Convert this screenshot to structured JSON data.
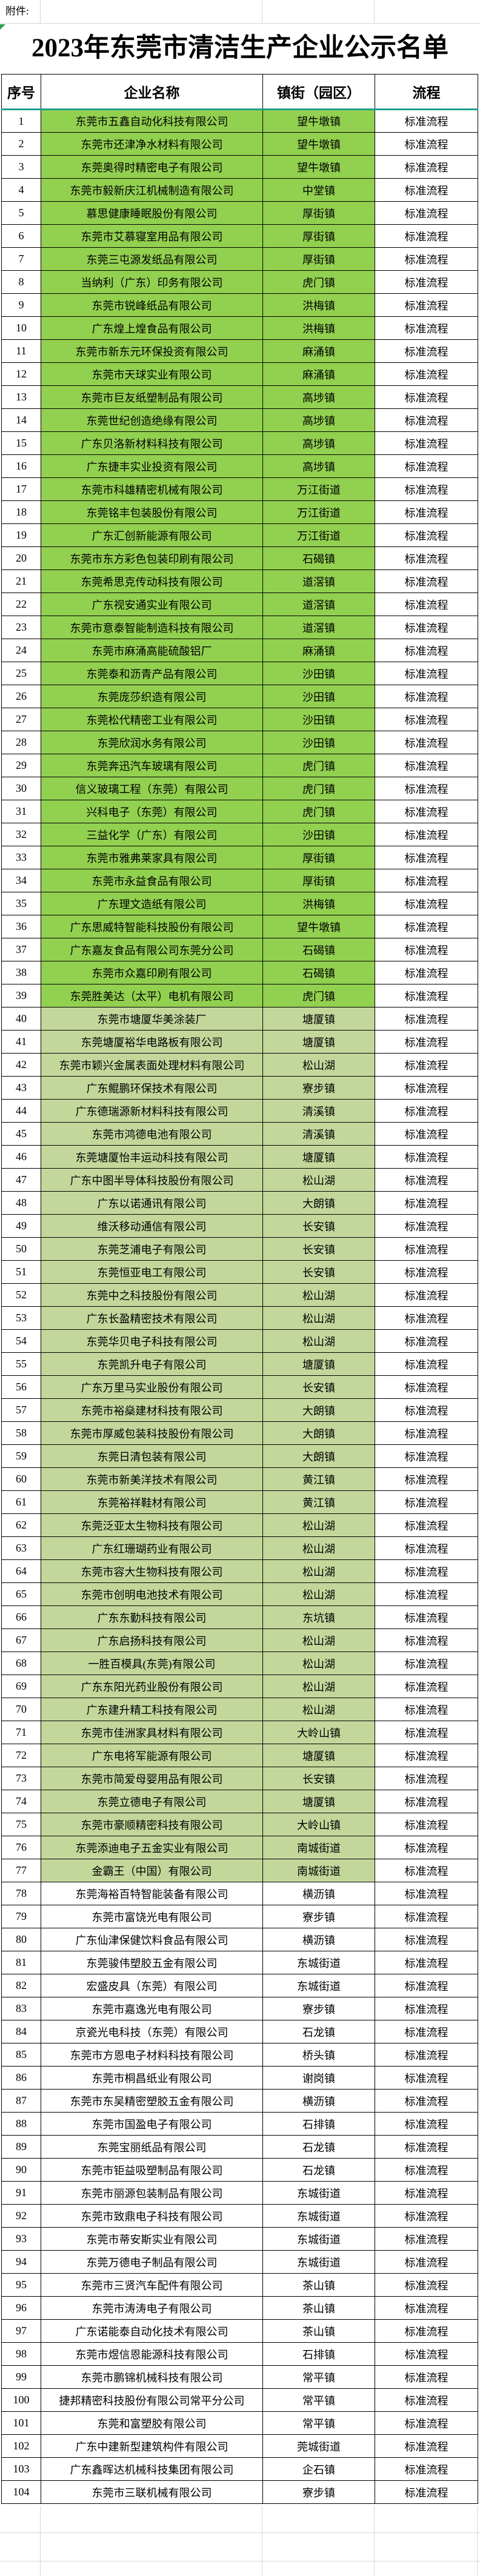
{
  "page": {
    "attachment_label": "附件:",
    "title": "2023年东莞市清洁生产企业公示名单"
  },
  "colors": {
    "dark_green": "#92D050",
    "light_green": "#C4D79B",
    "teal_line": "#1FA08C",
    "table_border": "#000000",
    "grid_faint": "#D6D6D6"
  },
  "fill_groups": [
    {
      "from": 1,
      "to": 39,
      "style": "fill-dark"
    },
    {
      "from": 40,
      "to": 77,
      "style": "fill-light"
    },
    {
      "from": 78,
      "to": 104,
      "style": "none"
    }
  ],
  "table": {
    "headers": [
      "序号",
      "企业名称",
      "镇街（园区）",
      "流程"
    ],
    "rows": [
      {
        "n": 1,
        "name": "东莞市五鑫自动化科技有限公司",
        "town": "望牛墩镇",
        "flow": "标准流程"
      },
      {
        "n": 2,
        "name": "东莞市还津净水材料有限公司",
        "town": "望牛墩镇",
        "flow": "标准流程"
      },
      {
        "n": 3,
        "name": "东莞奥得时精密电子有限公司",
        "town": "望牛墩镇",
        "flow": "标准流程"
      },
      {
        "n": 4,
        "name": "东莞市毅新庆江机械制造有限公司",
        "town": "中堂镇",
        "flow": "标准流程"
      },
      {
        "n": 5,
        "name": "慕思健康睡眠股份有限公司",
        "town": "厚街镇",
        "flow": "标准流程"
      },
      {
        "n": 6,
        "name": "东莞市艾慕寝室用品有限公司",
        "town": "厚街镇",
        "flow": "标准流程"
      },
      {
        "n": 7,
        "name": "东莞三屯源发纸品有限公司",
        "town": "厚街镇",
        "flow": "标准流程"
      },
      {
        "n": 8,
        "name": "当纳利（广东）印务有限公司",
        "town": "虎门镇",
        "flow": "标准流程"
      },
      {
        "n": 9,
        "name": "东莞市锐峰纸品有限公司",
        "town": "洪梅镇",
        "flow": "标准流程"
      },
      {
        "n": 10,
        "name": "广东煌上煌食品有限公司",
        "town": "洪梅镇",
        "flow": "标准流程"
      },
      {
        "n": 11,
        "name": "东莞市新东元环保投资有限公司",
        "town": "麻涌镇",
        "flow": "标准流程"
      },
      {
        "n": 12,
        "name": "东莞市天球实业有限公司",
        "town": "麻涌镇",
        "flow": "标准流程"
      },
      {
        "n": 13,
        "name": "东莞市巨友纸塑制品有限公司",
        "town": "高埗镇",
        "flow": "标准流程"
      },
      {
        "n": 14,
        "name": "东莞世纪创造绝缘有限公司",
        "town": "高埗镇",
        "flow": "标准流程"
      },
      {
        "n": 15,
        "name": "广东贝洛新材料科技有限公司",
        "town": "高埗镇",
        "flow": "标准流程"
      },
      {
        "n": 16,
        "name": "广东捷丰实业投资有限公司",
        "town": "高埗镇",
        "flow": "标准流程"
      },
      {
        "n": 17,
        "name": "东莞市科雄精密机械有限公司",
        "town": "万江街道",
        "flow": "标准流程"
      },
      {
        "n": 18,
        "name": "东莞铭丰包装股份有限公司",
        "town": "万江街道",
        "flow": "标准流程"
      },
      {
        "n": 19,
        "name": "广东汇创新能源有限公司",
        "town": "万江街道",
        "flow": "标准流程"
      },
      {
        "n": 20,
        "name": "东莞市东方彩色包装印刷有限公司",
        "town": "石碣镇",
        "flow": "标准流程"
      },
      {
        "n": 21,
        "name": "东莞希思克传动科技有限公司",
        "town": "道滘镇",
        "flow": "标准流程"
      },
      {
        "n": 22,
        "name": "广东视安通实业有限公司",
        "town": "道滘镇",
        "flow": "标准流程"
      },
      {
        "n": 23,
        "name": "东莞市意泰智能制造科技有限公司",
        "town": "道滘镇",
        "flow": "标准流程"
      },
      {
        "n": 24,
        "name": "东莞市麻涌高能硫酸铝厂",
        "town": "麻涌镇",
        "flow": "标准流程"
      },
      {
        "n": 25,
        "name": "东莞泰和沥青产品有限公司",
        "town": "沙田镇",
        "flow": "标准流程"
      },
      {
        "n": 26,
        "name": "东莞庞莎织造有限公司",
        "town": "沙田镇",
        "flow": "标准流程"
      },
      {
        "n": 27,
        "name": "东莞松代精密工业有限公司",
        "town": "沙田镇",
        "flow": "标准流程"
      },
      {
        "n": 28,
        "name": "东莞欣润水务有限公司",
        "town": "沙田镇",
        "flow": "标准流程"
      },
      {
        "n": 29,
        "name": "东莞奔迅汽车玻璃有限公司",
        "town": "虎门镇",
        "flow": "标准流程"
      },
      {
        "n": 30,
        "name": "信义玻璃工程（东莞）有限公司",
        "town": "虎门镇",
        "flow": "标准流程"
      },
      {
        "n": 31,
        "name": "兴科电子（东莞）有限公司",
        "town": "虎门镇",
        "flow": "标准流程"
      },
      {
        "n": 32,
        "name": "三益化学（广东）有限公司",
        "town": "沙田镇",
        "flow": "标准流程"
      },
      {
        "n": 33,
        "name": "东莞市雅弗莱家具有限公司",
        "town": "厚街镇",
        "flow": "标准流程"
      },
      {
        "n": 34,
        "name": "东莞市永益食品有限公司",
        "town": "厚街镇",
        "flow": "标准流程"
      },
      {
        "n": 35,
        "name": "广东理文造纸有限公司",
        "town": "洪梅镇",
        "flow": "标准流程"
      },
      {
        "n": 36,
        "name": "广东思威特智能科技股份有限公司",
        "town": "望牛墩镇",
        "flow": "标准流程"
      },
      {
        "n": 37,
        "name": "广东嘉友食品有限公司东莞分公司",
        "town": "石碣镇",
        "flow": "标准流程"
      },
      {
        "n": 38,
        "name": "东莞市众嘉印刷有限公司",
        "town": "石碣镇",
        "flow": "标准流程"
      },
      {
        "n": 39,
        "name": "东莞胜美达（太平）电机有限公司",
        "town": "虎门镇",
        "flow": "标准流程"
      },
      {
        "n": 40,
        "name": "东莞市塘厦华美涂装厂",
        "town": "塘厦镇",
        "flow": "标准流程"
      },
      {
        "n": 41,
        "name": "东莞塘厦裕华电路板有限公司",
        "town": "塘厦镇",
        "flow": "标准流程"
      },
      {
        "n": 42,
        "name": "东莞市颖兴金属表面处理材料有限公司",
        "town": "松山湖",
        "flow": "标准流程"
      },
      {
        "n": 43,
        "name": "广东鲲鹏环保技术有限公司",
        "town": "寮步镇",
        "flow": "标准流程"
      },
      {
        "n": 44,
        "name": "广东德瑞源新材料科技有限公司",
        "town": "清溪镇",
        "flow": "标准流程"
      },
      {
        "n": 45,
        "name": "东莞市鸿德电池有限公司",
        "town": "清溪镇",
        "flow": "标准流程"
      },
      {
        "n": 46,
        "name": "东莞塘厦怡丰运动科技有限公司",
        "town": "塘厦镇",
        "flow": "标准流程"
      },
      {
        "n": 47,
        "name": "广东中图半导体科技股份有限公司",
        "town": "松山湖",
        "flow": "标准流程"
      },
      {
        "n": 48,
        "name": "广东以诺通讯有限公司",
        "town": "大朗镇",
        "flow": "标准流程"
      },
      {
        "n": 49,
        "name": "维沃移动通信有限公司",
        "town": "长安镇",
        "flow": "标准流程"
      },
      {
        "n": 50,
        "name": "东莞芝浦电子有限公司",
        "town": "长安镇",
        "flow": "标准流程"
      },
      {
        "n": 51,
        "name": "东莞恒亚电工有限公司",
        "town": "长安镇",
        "flow": "标准流程"
      },
      {
        "n": 52,
        "name": "东莞中之科技股份有限公司",
        "town": "松山湖",
        "flow": "标准流程"
      },
      {
        "n": 53,
        "name": "广东长盈精密技术有限公司",
        "town": "松山湖",
        "flow": "标准流程"
      },
      {
        "n": 54,
        "name": "东莞华贝电子科技有限公司",
        "town": "松山湖",
        "flow": "标准流程"
      },
      {
        "n": 55,
        "name": "东莞凯升电子有限公司",
        "town": "塘厦镇",
        "flow": "标准流程"
      },
      {
        "n": 56,
        "name": "广东万里马实业股份有限公司",
        "town": "长安镇",
        "flow": "标准流程"
      },
      {
        "n": 57,
        "name": "东莞市裕燊建材科技有限公司",
        "town": "大朗镇",
        "flow": "标准流程"
      },
      {
        "n": 58,
        "name": "东莞市厚威包装科技股份有限公司",
        "town": "大朗镇",
        "flow": "标准流程"
      },
      {
        "n": 59,
        "name": "东莞日清包装有限公司",
        "town": "大朗镇",
        "flow": "标准流程"
      },
      {
        "n": 60,
        "name": "东莞市新美洋技术有限公司",
        "town": "黄江镇",
        "flow": "标准流程"
      },
      {
        "n": 61,
        "name": "东莞裕祥鞋材有限公司",
        "town": "黄江镇",
        "flow": "标准流程"
      },
      {
        "n": 62,
        "name": "东莞泛亚太生物科技有限公司",
        "town": "松山湖",
        "flow": "标准流程"
      },
      {
        "n": 63,
        "name": "广东红珊瑚药业有限公司",
        "town": "松山湖",
        "flow": "标准流程"
      },
      {
        "n": 64,
        "name": "东莞市容大生物科技有限公司",
        "town": "松山湖",
        "flow": "标准流程"
      },
      {
        "n": 65,
        "name": "东莞市创明电池技术有限公司",
        "town": "松山湖",
        "flow": "标准流程"
      },
      {
        "n": 66,
        "name": "广东东勤科技有限公司",
        "town": "东坑镇",
        "flow": "标准流程"
      },
      {
        "n": 67,
        "name": "广东启扬科技有限公司",
        "town": "松山湖",
        "flow": "标准流程"
      },
      {
        "n": 68,
        "name": "一胜百模具(东莞)有限公司",
        "town": "松山湖",
        "flow": "标准流程"
      },
      {
        "n": 69,
        "name": "广东东阳光药业股份有限公司",
        "town": "松山湖",
        "flow": "标准流程"
      },
      {
        "n": 70,
        "name": "广东建升精工科技有限公司",
        "town": "松山湖",
        "flow": "标准流程"
      },
      {
        "n": 71,
        "name": "东莞市佳洲家具材料有限公司",
        "town": "大岭山镇",
        "flow": "标准流程"
      },
      {
        "n": 72,
        "name": "广东电将军能源有限公司",
        "town": "塘厦镇",
        "flow": "标准流程"
      },
      {
        "n": 73,
        "name": "东莞市简爱母婴用品有限公司",
        "town": "长安镇",
        "flow": "标准流程"
      },
      {
        "n": 74,
        "name": "东莞立德电子有限公司",
        "town": "塘厦镇",
        "flow": "标准流程"
      },
      {
        "n": 75,
        "name": "东莞市豪顺精密科技有限公司",
        "town": "大岭山镇",
        "flow": "标准流程"
      },
      {
        "n": 76,
        "name": "东莞添迪电子五金实业有限公司",
        "town": "南城街道",
        "flow": "标准流程"
      },
      {
        "n": 77,
        "name": "金霸王（中国）有限公司",
        "town": "南城街道",
        "flow": "标准流程"
      },
      {
        "n": 78,
        "name": "东莞海裕百特智能装备有限公司",
        "town": "横沥镇",
        "flow": "标准流程"
      },
      {
        "n": 79,
        "name": "东莞市富饶光电有限公司",
        "town": "寮步镇",
        "flow": "标准流程"
      },
      {
        "n": 80,
        "name": "广东仙津保健饮料食品有限公司",
        "town": "横沥镇",
        "flow": "标准流程"
      },
      {
        "n": 81,
        "name": "东莞骏伟塑胶五金有限公司",
        "town": "东城街道",
        "flow": "标准流程"
      },
      {
        "n": 82,
        "name": "宏盛皮具（东莞）有限公司",
        "town": "东城街道",
        "flow": "标准流程"
      },
      {
        "n": 83,
        "name": "东莞市嘉逸光电有限公司",
        "town": "寮步镇",
        "flow": "标准流程"
      },
      {
        "n": 84,
        "name": "京瓷光电科技（东莞）有限公司",
        "town": "石龙镇",
        "flow": "标准流程"
      },
      {
        "n": 85,
        "name": "东莞市方恩电子材料科技有限公司",
        "town": "桥头镇",
        "flow": "标准流程"
      },
      {
        "n": 86,
        "name": "东莞市桐昌纸业有限公司",
        "town": "谢岗镇",
        "flow": "标准流程"
      },
      {
        "n": 87,
        "name": "东莞市东吴精密塑胶五金有限公司",
        "town": "横沥镇",
        "flow": "标准流程"
      },
      {
        "n": 88,
        "name": "东莞市国盈电子有限公司",
        "town": "石排镇",
        "flow": "标准流程"
      },
      {
        "n": 89,
        "name": "东莞宝丽纸品有限公司",
        "town": "石龙镇",
        "flow": "标准流程"
      },
      {
        "n": 90,
        "name": "东莞市钜益吸塑制品有限公司",
        "town": "石龙镇",
        "flow": "标准流程"
      },
      {
        "n": 91,
        "name": "东莞市丽源包装制品有限公司",
        "town": "东城街道",
        "flow": "标准流程"
      },
      {
        "n": 92,
        "name": "东莞市致鼎电子科技有限公司",
        "town": "东城街道",
        "flow": "标准流程"
      },
      {
        "n": 93,
        "name": "东莞市蒂安斯实业有限公司",
        "town": "东城街道",
        "flow": "标准流程"
      },
      {
        "n": 94,
        "name": "东莞万德电子制品有限公司",
        "town": "东城街道",
        "flow": "标准流程"
      },
      {
        "n": 95,
        "name": "东莞市三贤汽车配件有限公司",
        "town": "茶山镇",
        "flow": "标准流程"
      },
      {
        "n": 96,
        "name": "东莞市涛涛电子有限公司",
        "town": "茶山镇",
        "flow": "标准流程"
      },
      {
        "n": 97,
        "name": "广东诺能泰自动化技术有限公司",
        "town": "茶山镇",
        "flow": "标准流程"
      },
      {
        "n": 98,
        "name": "东莞市煜信恩能源科技有限公司",
        "town": "石排镇",
        "flow": "标准流程"
      },
      {
        "n": 99,
        "name": "东莞市鹏锦机械科技有限公司",
        "town": "常平镇",
        "flow": "标准流程"
      },
      {
        "n": 100,
        "name": "捷邦精密科技股份有限公司常平分公司",
        "town": "常平镇",
        "flow": "标准流程"
      },
      {
        "n": 101,
        "name": "东莞和富塑胶有限公司",
        "town": "常平镇",
        "flow": "标准流程"
      },
      {
        "n": 102,
        "name": "广东中建新型建筑构件有限公司",
        "town": "莞城街道",
        "flow": "标准流程"
      },
      {
        "n": 103,
        "name": "广东鑫晖达机械科技集团有限公司",
        "town": "企石镇",
        "flow": "标准流程"
      },
      {
        "n": 104,
        "name": "东莞市三联机械有限公司",
        "town": "寮步镇",
        "flow": "标准流程"
      }
    ]
  }
}
